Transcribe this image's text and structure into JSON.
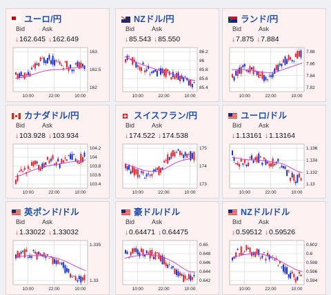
{
  "labels": {
    "bid": "Bid",
    "ask": "Ask"
  },
  "x_ticks": [
    "10:00",
    "22:00",
    "10:00"
  ],
  "cards": [
    {
      "title": "ユーロ/円",
      "flag": "eur",
      "bid": "162.645",
      "ask": "162.649",
      "y_ticks": [
        "163",
        "162.5",
        "162"
      ],
      "chart_data": {
        "type": "candlestick",
        "trend": [
          0.35,
          0.35,
          0.4,
          0.55,
          0.7,
          0.75,
          0.7,
          0.65,
          0.6,
          0.55,
          0.6,
          0.55
        ],
        "avg": [
          0.3,
          0.32,
          0.35,
          0.4,
          0.45,
          0.48,
          0.5,
          0.5,
          0.52,
          0.54,
          0.55,
          0.55
        ]
      }
    },
    {
      "title": "NZドル/円",
      "flag": "nzd",
      "bid": "85.543",
      "ask": "85.550",
      "y_ticks": [
        "86.2",
        "86",
        "85.8",
        "85.6",
        "85.4"
      ],
      "chart_data": {
        "type": "candlestick",
        "trend": [
          0.75,
          0.7,
          0.6,
          0.55,
          0.5,
          0.45,
          0.45,
          0.4,
          0.35,
          0.3,
          0.2,
          0.15
        ],
        "avg": [
          0.8,
          0.72,
          0.65,
          0.6,
          0.55,
          0.5,
          0.45,
          0.42,
          0.38,
          0.33,
          0.28,
          0.25
        ]
      }
    },
    {
      "title": "ランド/円",
      "flag": "zar",
      "bid": "7.875",
      "ask": "7.884",
      "y_ticks": [
        "7.88",
        "7.86",
        "7.84",
        "7.82"
      ],
      "chart_data": {
        "type": "candlestick",
        "trend": [
          0.3,
          0.45,
          0.55,
          0.5,
          0.45,
          0.35,
          0.3,
          0.5,
          0.65,
          0.75,
          0.8,
          0.85
        ],
        "avg": [
          0.5,
          0.5,
          0.5,
          0.48,
          0.46,
          0.44,
          0.43,
          0.45,
          0.5,
          0.55,
          0.6,
          0.65
        ]
      }
    },
    {
      "title": "カナダドル/円",
      "flag": "cad",
      "bid": "103.928",
      "ask": "103.934",
      "y_ticks": [
        "104.2",
        "104",
        "103.8",
        "103.6",
        "103.4"
      ],
      "chart_data": {
        "type": "candlestick",
        "trend": [
          0.2,
          0.35,
          0.45,
          0.55,
          0.5,
          0.6,
          0.65,
          0.55,
          0.6,
          0.7,
          0.65,
          0.7
        ],
        "avg": [
          0.25,
          0.3,
          0.36,
          0.42,
          0.46,
          0.5,
          0.53,
          0.55,
          0.58,
          0.6,
          0.62,
          0.64
        ]
      }
    },
    {
      "title": "スイスフラン/円",
      "flag": "chf",
      "bid": "174.522",
      "ask": "174.538",
      "y_ticks": [
        "175",
        "174",
        "173"
      ],
      "chart_data": {
        "type": "candlestick",
        "trend": [
          0.45,
          0.4,
          0.35,
          0.3,
          0.3,
          0.35,
          0.5,
          0.7,
          0.8,
          0.78,
          0.75,
          0.72
        ],
        "avg": [
          0.55,
          0.5,
          0.45,
          0.4,
          0.38,
          0.38,
          0.42,
          0.5,
          0.58,
          0.63,
          0.66,
          0.68
        ]
      }
    },
    {
      "title": "ユーロ/ドル",
      "flag": "usd",
      "bid": "1.13161",
      "ask": "1.13164",
      "y_ticks": [
        "1.136",
        "1.134",
        "1.132",
        "1.13"
      ],
      "chart_data": {
        "type": "candlestick",
        "trend": [
          0.75,
          0.6,
          0.55,
          0.65,
          0.7,
          0.6,
          0.55,
          0.6,
          0.5,
          0.3,
          0.2,
          0.25
        ],
        "avg": [
          0.7,
          0.68,
          0.65,
          0.64,
          0.64,
          0.62,
          0.6,
          0.58,
          0.55,
          0.48,
          0.4,
          0.35
        ]
      }
    },
    {
      "title": "英ポンド/ドル",
      "flag": "usd",
      "bid": "1.33022",
      "ask": "1.33032",
      "y_ticks": [
        "1.335",
        "1.33"
      ],
      "chart_data": {
        "type": "candlestick",
        "trend": [
          0.7,
          0.72,
          0.7,
          0.68,
          0.66,
          0.6,
          0.55,
          0.5,
          0.35,
          0.2,
          0.12,
          0.15
        ],
        "avg": [
          0.62,
          0.64,
          0.66,
          0.66,
          0.66,
          0.64,
          0.62,
          0.58,
          0.52,
          0.45,
          0.38,
          0.32
        ]
      }
    },
    {
      "title": "豪ドル/ドル",
      "flag": "usd",
      "bid": "0.64471",
      "ask": "0.64475",
      "y_ticks": [
        "0.65",
        "0.648",
        "0.646",
        "0.644",
        "0.642"
      ],
      "chart_data": {
        "type": "candlestick",
        "trend": [
          0.7,
          0.72,
          0.75,
          0.72,
          0.7,
          0.65,
          0.55,
          0.45,
          0.3,
          0.15,
          0.12,
          0.25
        ],
        "avg": [
          0.6,
          0.63,
          0.66,
          0.68,
          0.68,
          0.66,
          0.62,
          0.56,
          0.48,
          0.38,
          0.3,
          0.28
        ]
      }
    },
    {
      "title": "NZドル/ドル",
      "flag": "usd",
      "bid": "0.59512",
      "ask": "0.59526",
      "y_ticks": [
        "0.602",
        "0.6",
        "0.598",
        "0.596",
        "0.594"
      ],
      "chart_data": {
        "type": "candlestick",
        "trend": [
          0.65,
          0.75,
          0.8,
          0.75,
          0.7,
          0.65,
          0.6,
          0.55,
          0.4,
          0.25,
          0.15,
          0.2
        ],
        "avg": [
          0.6,
          0.65,
          0.68,
          0.7,
          0.7,
          0.68,
          0.64,
          0.58,
          0.5,
          0.42,
          0.34,
          0.3
        ]
      }
    }
  ],
  "colors": {
    "up": "#e8202a",
    "down": "#1b2fd6",
    "avg": "#cc33cc",
    "grid": "#c8c8c8",
    "title": "#1f4fa7"
  }
}
